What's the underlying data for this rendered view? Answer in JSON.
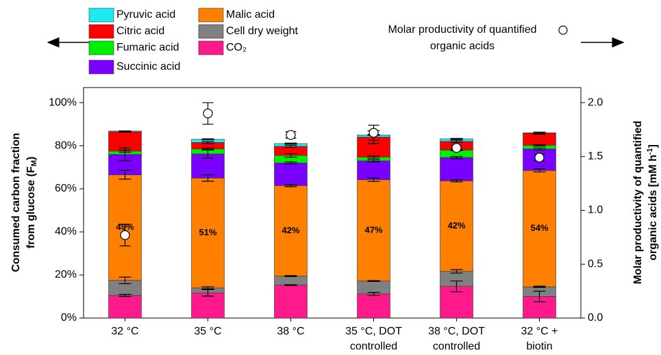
{
  "chart_data": {
    "type": "stacked_bar",
    "categories": [
      [
        "32 °C"
      ],
      [
        "35 °C"
      ],
      [
        "38 °C"
      ],
      [
        "35 °C, DOT",
        "controlled"
      ],
      [
        "38 °C, DOT",
        "controlled"
      ],
      [
        "32 °C +",
        "biotin"
      ]
    ],
    "ylabel": {
      "text": "Consumed carbon fraction",
      "text2": "from glucose (F",
      "sub": "M",
      "after": ")"
    },
    "y2label": {
      "text": "Molar productivity of quantified",
      "text2": "organic acids [mM h",
      "sup": "-1",
      "after": "]"
    },
    "ylim": [
      0,
      107
    ],
    "yticks": [
      {
        "value": 0,
        "label": "0%"
      },
      {
        "value": 20,
        "label": "20%"
      },
      {
        "value": 40,
        "label": "40%"
      },
      {
        "value": 60,
        "label": "60%"
      },
      {
        "value": 80,
        "label": "80%"
      },
      {
        "value": 100,
        "label": "100%"
      }
    ],
    "y2lim": [
      0,
      2.14
    ],
    "y2ticks": [
      {
        "value": 0,
        "label": "0.0"
      },
      0.5,
      {
        "value": 1,
        "label": "1.0"
      },
      1.5,
      {
        "value": 2,
        "label": "2.0"
      }
    ],
    "series": [
      {
        "name": "CO₂",
        "color": "#ff1a8c",
        "values": [
          10.5,
          11.7,
          15.3,
          11.2,
          14.7,
          10
        ],
        "errors": [
          0.5,
          1.5,
          0.2,
          0.7,
          2.5,
          2.5
        ]
      },
      {
        "name": "Cell dry weight",
        "color": "#808080",
        "values": [
          7,
          2.3,
          4.2,
          6,
          7,
          4.5
        ],
        "errors": [
          1.5,
          0.5,
          0.2,
          0.2,
          0.8,
          0.3
        ]
      },
      {
        "name": "Malic acid",
        "color": "#ff7f00",
        "values": [
          49,
          51,
          42,
          47,
          42,
          54
        ],
        "value_labels": [
          "49%",
          "51%",
          "42%",
          "47%",
          "42%",
          "54%"
        ],
        "errors": [
          2,
          1.5,
          0.5,
          0.8,
          0.5,
          0.7
        ]
      },
      {
        "name": "Succinic acid",
        "color": "#7a00ff",
        "values": [
          9.5,
          11.2,
          10.5,
          8.8,
          10.8,
          10
        ],
        "errors": [
          3,
          2,
          0.5,
          0.5,
          0.5,
          0.5
        ]
      },
      {
        "name": "Fumaric acid",
        "color": "#00ee00",
        "values": [
          1.5,
          2.3,
          3.5,
          1.7,
          3.5,
          1.7
        ],
        "errors": [
          0.5,
          0.5,
          0.8,
          0.5,
          0.3,
          0.3
        ]
      },
      {
        "name": "Citric acid",
        "color": "#ff0000",
        "values": [
          9,
          3,
          4.2,
          9.3,
          4,
          5.6
        ],
        "errors": [
          0.2,
          0.5,
          0.5,
          3,
          0.5,
          0.5
        ]
      },
      {
        "name": "Pyruvic acid",
        "color": "#1de9f0",
        "values": [
          0.3,
          1.5,
          1.3,
          1,
          1.2,
          0.2
        ],
        "errors": [
          0.1,
          0.2,
          0.2,
          0.2,
          0.2,
          0.3
        ]
      },
      {
        "name": "Molar productivity of quantified organic acids",
        "axis": "y2",
        "marker": "circle",
        "color": "#ffffff",
        "values": [
          0.77,
          1.9,
          1.7,
          1.72,
          1.58,
          1.49
        ],
        "errors": [
          0.1,
          0.1,
          0.03,
          0.07,
          0.02,
          0.03
        ]
      }
    ]
  }
}
